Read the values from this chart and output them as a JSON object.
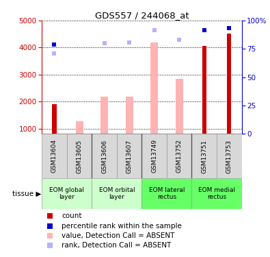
{
  "title": "GDS557 / 244068_at",
  "samples": [
    "GSM13604",
    "GSM13605",
    "GSM13606",
    "GSM13607",
    "GSM13749",
    "GSM13752",
    "GSM13751",
    "GSM13753"
  ],
  "count_values": [
    1900,
    null,
    null,
    null,
    null,
    null,
    4050,
    4520
  ],
  "absent_value_bars": [
    null,
    1270,
    2180,
    2180,
    4190,
    2830,
    null,
    null
  ],
  "absent_value_bar_color": "#ffb3b3",
  "rank_absent_dots": [
    3780,
    null,
    4170,
    4190,
    4650,
    4280,
    null,
    null
  ],
  "rank_absent_dot_color": "#b3b3ff",
  "percentile_rank_dots": [
    4120,
    null,
    null,
    null,
    null,
    null,
    4650,
    4730
  ],
  "percentile_rank_dot_color": "#0000cc",
  "count_bar_color": "#cc0000",
  "ylim_left": [
    800,
    5000
  ],
  "ylim_right": [
    0,
    100
  ],
  "yticks_left": [
    1000,
    2000,
    3000,
    4000,
    5000
  ],
  "yticks_right": [
    0,
    25,
    50,
    75,
    100
  ],
  "tissue_groups": [
    {
      "label": "EOM global\nlayer",
      "start": 0,
      "end": 2,
      "color": "#ccffcc"
    },
    {
      "label": "EOM orbital\nlayer",
      "start": 2,
      "end": 4,
      "color": "#ccffcc"
    },
    {
      "label": "EOM lateral\nrectus",
      "start": 4,
      "end": 6,
      "color": "#66ff66"
    },
    {
      "label": "EOM medial\nrectus",
      "start": 6,
      "end": 8,
      "color": "#66ff66"
    }
  ],
  "legend_items": [
    {
      "label": "count",
      "color": "#cc0000"
    },
    {
      "label": "percentile rank within the sample",
      "color": "#0000cc"
    },
    {
      "label": "value, Detection Call = ABSENT",
      "color": "#ffb3b3"
    },
    {
      "label": "rank, Detection Call = ABSENT",
      "color": "#b3b3ff"
    }
  ],
  "left_axis_color": "#cc0000",
  "right_axis_color": "#0000cc",
  "bar_width": 0.3,
  "dot_size": 5
}
